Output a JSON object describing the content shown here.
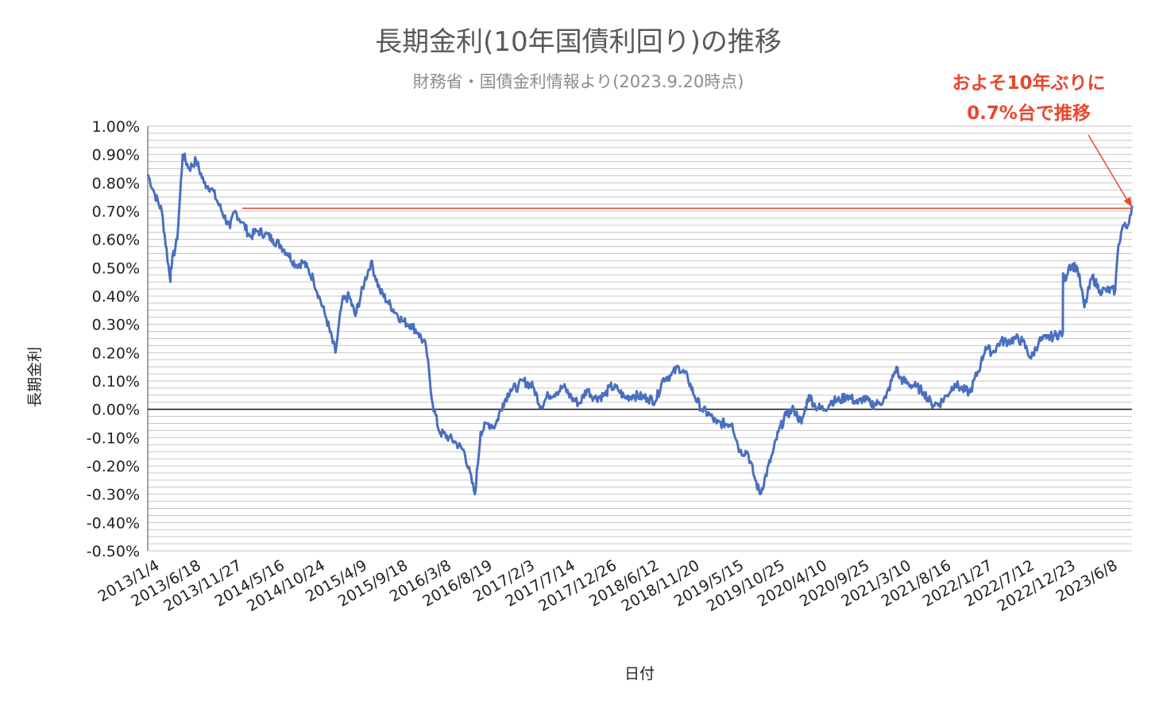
{
  "chart_data": {
    "type": "line",
    "title": "長期金利(10年国債利回り)の推移",
    "subtitle": "財務省・国債金利情報より(2023.9.20時点)",
    "xlabel": "日付",
    "ylabel": "長期金利",
    "ylim": [
      -0.5,
      1.0
    ],
    "y_ticks": [
      "1.00%",
      "0.90%",
      "0.80%",
      "0.70%",
      "0.60%",
      "0.50%",
      "0.40%",
      "0.30%",
      "0.20%",
      "0.10%",
      "0.00%",
      "-0.10%",
      "-0.20%",
      "-0.30%",
      "-0.40%",
      "-0.50%"
    ],
    "x_ticks": [
      "2013/1/4",
      "2013/6/18",
      "2013/11/27",
      "2014/5/16",
      "2014/10/24",
      "2015/4/9",
      "2015/9/18",
      "2016/3/8",
      "2016/8/19",
      "2017/2/3",
      "2017/7/14",
      "2017/12/26",
      "2018/6/12",
      "2018/11/20",
      "2019/5/15",
      "2019/10/25",
      "2020/4/10",
      "2020/9/25",
      "2021/3/10",
      "2021/8/16",
      "2022/1/27",
      "2022/7/12",
      "2022/12/23",
      "2023/6/8"
    ],
    "grid": true,
    "series_color": "#4a6fbf",
    "series": [
      {
        "values": [
          [
            "2013/1/4",
            0.83
          ],
          [
            "2013/2/1",
            0.76
          ],
          [
            "2013/3/1",
            0.7
          ],
          [
            "2013/4/4",
            0.45
          ],
          [
            "2013/4/5",
            0.5
          ],
          [
            "2013/5/1",
            0.6
          ],
          [
            "2013/5/23",
            0.9
          ],
          [
            "2013/6/18",
            0.85
          ],
          [
            "2013/7/15",
            0.88
          ],
          [
            "2013/8/15",
            0.8
          ],
          [
            "2013/9/15",
            0.78
          ],
          [
            "2013/10/15",
            0.72
          ],
          [
            "2013/11/27",
            0.64
          ],
          [
            "2013/12/15",
            0.7
          ],
          [
            "2014/1/15",
            0.66
          ],
          [
            "2014/2/15",
            0.61
          ],
          [
            "2014/3/15",
            0.63
          ],
          [
            "2014/4/15",
            0.62
          ],
          [
            "2014/5/16",
            0.6
          ],
          [
            "2014/6/15",
            0.58
          ],
          [
            "2014/7/15",
            0.55
          ],
          [
            "2014/8/15",
            0.51
          ],
          [
            "2014/9/15",
            0.52
          ],
          [
            "2014/10/24",
            0.46
          ],
          [
            "2014/11/15",
            0.4
          ],
          [
            "2014/12/15",
            0.32
          ],
          [
            "2015/1/20",
            0.2
          ],
          [
            "2015/2/15",
            0.38
          ],
          [
            "2015/3/15",
            0.4
          ],
          [
            "2015/4/9",
            0.33
          ],
          [
            "2015/5/15",
            0.45
          ],
          [
            "2015/6/10",
            0.52
          ],
          [
            "2015/7/15",
            0.42
          ],
          [
            "2015/8/15",
            0.38
          ],
          [
            "2015/9/18",
            0.34
          ],
          [
            "2015/10/15",
            0.31
          ],
          [
            "2015/11/15",
            0.3
          ],
          [
            "2015/12/15",
            0.27
          ],
          [
            "2016/1/15",
            0.22
          ],
          [
            "2016/2/10",
            0.02
          ],
          [
            "2016/3/8",
            -0.08
          ],
          [
            "2016/4/15",
            -0.1
          ],
          [
            "2016/5/15",
            -0.12
          ],
          [
            "2016/6/15",
            -0.15
          ],
          [
            "2016/7/27",
            -0.3
          ],
          [
            "2016/8/19",
            -0.08
          ],
          [
            "2016/9/15",
            -0.05
          ],
          [
            "2016/10/15",
            -0.06
          ],
          [
            "2016/11/15",
            0.02
          ],
          [
            "2016/12/15",
            0.07
          ],
          [
            "2017/1/15",
            0.08
          ],
          [
            "2017/2/3",
            0.1
          ],
          [
            "2017/3/15",
            0.08
          ],
          [
            "2017/4/15",
            0.01
          ],
          [
            "2017/5/15",
            0.05
          ],
          [
            "2017/6/15",
            0.06
          ],
          [
            "2017/7/14",
            0.08
          ],
          [
            "2017/8/15",
            0.04
          ],
          [
            "2017/9/15",
            0.02
          ],
          [
            "2017/10/15",
            0.07
          ],
          [
            "2017/11/15",
            0.04
          ],
          [
            "2017/12/26",
            0.05
          ],
          [
            "2018/1/15",
            0.08
          ],
          [
            "2018/2/15",
            0.07
          ],
          [
            "2018/3/15",
            0.04
          ],
          [
            "2018/4/15",
            0.05
          ],
          [
            "2018/6/12",
            0.04
          ],
          [
            "2018/7/15",
            0.03
          ],
          [
            "2018/8/15",
            0.11
          ],
          [
            "2018/9/15",
            0.12
          ],
          [
            "2018/10/15",
            0.15
          ],
          [
            "2018/11/20",
            0.11
          ],
          [
            "2018/12/15",
            0.05
          ],
          [
            "2019/1/15",
            0.0
          ],
          [
            "2019/2/15",
            -0.02
          ],
          [
            "2019/3/15",
            -0.05
          ],
          [
            "2019/5/15",
            -0.05
          ],
          [
            "2019/6/15",
            -0.15
          ],
          [
            "2019/7/15",
            -0.15
          ],
          [
            "2019/8/15",
            -0.25
          ],
          [
            "2019/9/3",
            -0.3
          ],
          [
            "2019/10/25",
            -0.15
          ],
          [
            "2019/11/15",
            -0.08
          ],
          [
            "2019/12/15",
            -0.02
          ],
          [
            "2020/1/15",
            0.0
          ],
          [
            "2020/2/15",
            -0.05
          ],
          [
            "2020/3/15",
            0.05
          ],
          [
            "2020/4/10",
            0.01
          ],
          [
            "2020/5/15",
            0.0
          ],
          [
            "2020/6/15",
            0.03
          ],
          [
            "2020/7/15",
            0.03
          ],
          [
            "2020/8/15",
            0.05
          ],
          [
            "2020/9/25",
            0.02
          ],
          [
            "2020/10/15",
            0.04
          ],
          [
            "2020/11/15",
            0.02
          ],
          [
            "2020/12/15",
            0.02
          ],
          [
            "2021/1/15",
            0.04
          ],
          [
            "2021/2/26",
            0.15
          ],
          [
            "2021/3/10",
            0.11
          ],
          [
            "2021/4/15",
            0.09
          ],
          [
            "2021/5/15",
            0.08
          ],
          [
            "2021/6/15",
            0.06
          ],
          [
            "2021/7/15",
            0.02
          ],
          [
            "2021/8/16",
            0.02
          ],
          [
            "2021/9/15",
            0.05
          ],
          [
            "2021/10/15",
            0.09
          ],
          [
            "2021/11/15",
            0.07
          ],
          [
            "2021/12/15",
            0.06
          ],
          [
            "2022/1/27",
            0.16
          ],
          [
            "2022/2/15",
            0.22
          ],
          [
            "2022/3/15",
            0.2
          ],
          [
            "2022/4/15",
            0.24
          ],
          [
            "2022/5/15",
            0.24
          ],
          [
            "2022/6/15",
            0.25
          ],
          [
            "2022/7/12",
            0.24
          ],
          [
            "2022/8/15",
            0.18
          ],
          [
            "2022/9/15",
            0.24
          ],
          [
            "2022/10/15",
            0.25
          ],
          [
            "2022/11/15",
            0.26
          ],
          [
            "2022/12/19",
            0.27
          ],
          [
            "2022/12/20",
            0.48
          ],
          [
            "2022/12/23",
            0.45
          ],
          [
            "2023/1/15",
            0.51
          ],
          [
            "2023/2/15",
            0.5
          ],
          [
            "2023/3/15",
            0.36
          ],
          [
            "2023/4/15",
            0.47
          ],
          [
            "2023/5/15",
            0.42
          ],
          [
            "2023/6/8",
            0.42
          ],
          [
            "2023/7/15",
            0.42
          ],
          [
            "2023/7/28",
            0.58
          ],
          [
            "2023/8/15",
            0.65
          ],
          [
            "2023/8/31",
            0.64
          ],
          [
            "2023/9/20",
            0.72
          ]
        ]
      }
    ],
    "reference_line": {
      "value": 0.71,
      "color": "#e8472e"
    },
    "zero_line": true,
    "annotation": {
      "lines": [
        "およそ10年ぶりに",
        "0.7%台で推移"
      ],
      "color": "#e8472e"
    }
  }
}
